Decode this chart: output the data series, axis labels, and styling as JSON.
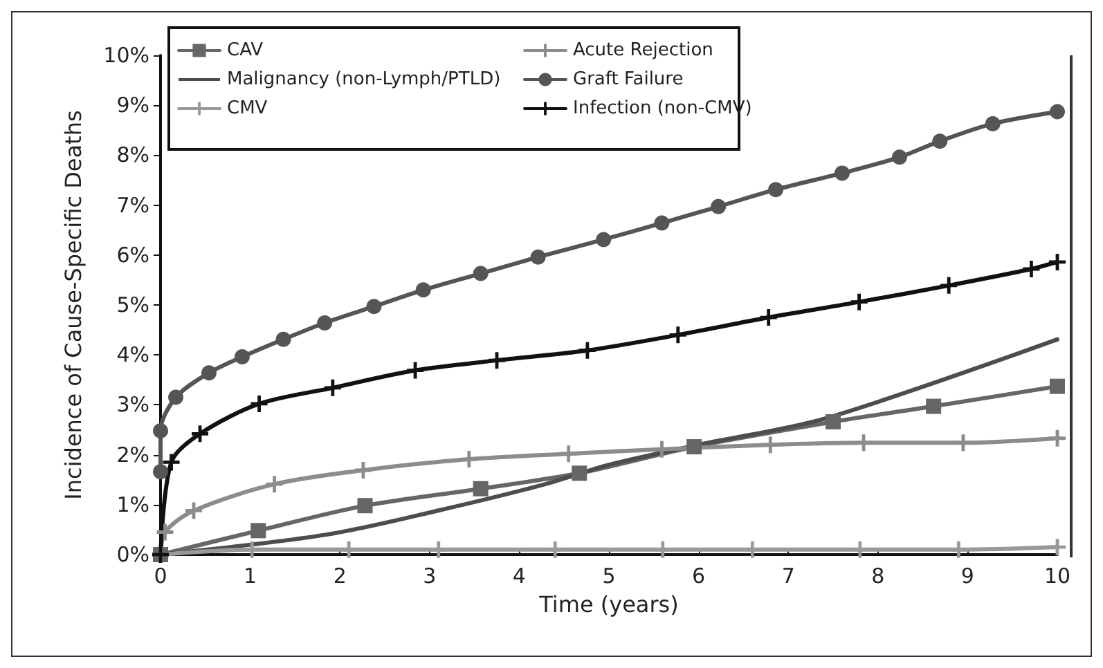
{
  "chart_data": {
    "type": "line",
    "xlabel": "Time (years)",
    "ylabel": "Incidence of Cause-Specific Deaths",
    "xlim": [
      0,
      10
    ],
    "xticks": [
      0,
      1,
      2,
      3,
      4,
      5,
      6,
      7,
      8,
      9,
      10
    ],
    "ylim": [
      0,
      10
    ],
    "yticks": [
      {
        "value": 0,
        "label": "0%"
      },
      {
        "value": 1,
        "label": "1%"
      },
      {
        "value": 2,
        "label": "2%"
      },
      {
        "value": 3,
        "label": "3%"
      },
      {
        "value": 4,
        "label": "4%"
      },
      {
        "value": 5,
        "label": "5%"
      },
      {
        "value": 6,
        "label": "6%"
      },
      {
        "value": 7,
        "label": "7%"
      },
      {
        "value": 8,
        "label": "8%"
      },
      {
        "value": 9,
        "label": "9%"
      },
      {
        "value": 10,
        "label": "10%"
      }
    ],
    "grid": false,
    "legend": "top left",
    "line_style": "solid",
    "series": [
      {
        "name": "CAV",
        "color": "#666666",
        "marker": "square",
        "x": [
          0,
          1.09,
          2.28,
          3.57,
          4.67,
          5.95,
          7.5,
          8.62,
          10
        ],
        "values": [
          0,
          0.48,
          0.98,
          1.32,
          1.63,
          2.16,
          2.66,
          2.97,
          3.37
        ]
      },
      {
        "name": "Malignancy (non-Lymph/PTLD)",
        "color": "#4d4d4d",
        "marker": "none",
        "x": [
          0,
          1.85,
          3.09,
          4.29,
          5,
          6,
          7.42,
          10
        ],
        "values": [
          0,
          0.4,
          0.88,
          1.41,
          1.8,
          2.2,
          2.73,
          4.31
        ]
      },
      {
        "name": "CMV",
        "color": "#999999",
        "marker": "cross",
        "x": [
          0,
          1.02,
          2.1,
          3.1,
          4.4,
          5.6,
          6.6,
          7.8,
          8.9,
          10
        ],
        "values": [
          0,
          0.1,
          0.1,
          0.1,
          0.1,
          0.1,
          0.1,
          0.1,
          0.1,
          0.15
        ]
      },
      {
        "name": "Acute Rejection",
        "color": "#8c8c8c",
        "marker": "cross",
        "x": [
          0,
          0.05,
          0.37,
          1.27,
          2.26,
          3.44,
          4.55,
          5.59,
          6.8,
          7.84,
          8.95,
          10
        ],
        "values": [
          0,
          0.45,
          0.88,
          1.41,
          1.69,
          1.91,
          2.02,
          2.11,
          2.2,
          2.24,
          2.24,
          2.33
        ]
      },
      {
        "name": "Graft Failure",
        "color": "#555555",
        "marker": "circle",
        "x": [
          0,
          0,
          0.17,
          0.54,
          0.91,
          1.37,
          1.83,
          2.38,
          2.93,
          3.57,
          4.21,
          4.94,
          5.59,
          6.22,
          6.86,
          7.6,
          8.24,
          8.69,
          9.28,
          10
        ],
        "values": [
          1.66,
          2.48,
          3.15,
          3.64,
          3.96,
          4.31,
          4.64,
          4.97,
          5.3,
          5.63,
          5.96,
          6.31,
          6.64,
          6.97,
          7.31,
          7.64,
          7.96,
          8.28,
          8.63,
          8.87
        ]
      },
      {
        "name": "Infection (non-CMV)",
        "color": "#111111",
        "marker": "cross",
        "x": [
          0,
          0.12,
          0.44,
          1.1,
          1.92,
          2.84,
          3.75,
          4.76,
          5.77,
          6.78,
          7.79,
          8.79,
          9.71,
          10
        ],
        "values": [
          0,
          1.85,
          2.42,
          3.02,
          3.34,
          3.69,
          3.89,
          4.09,
          4.4,
          4.75,
          5.06,
          5.39,
          5.72,
          5.86
        ]
      }
    ]
  }
}
